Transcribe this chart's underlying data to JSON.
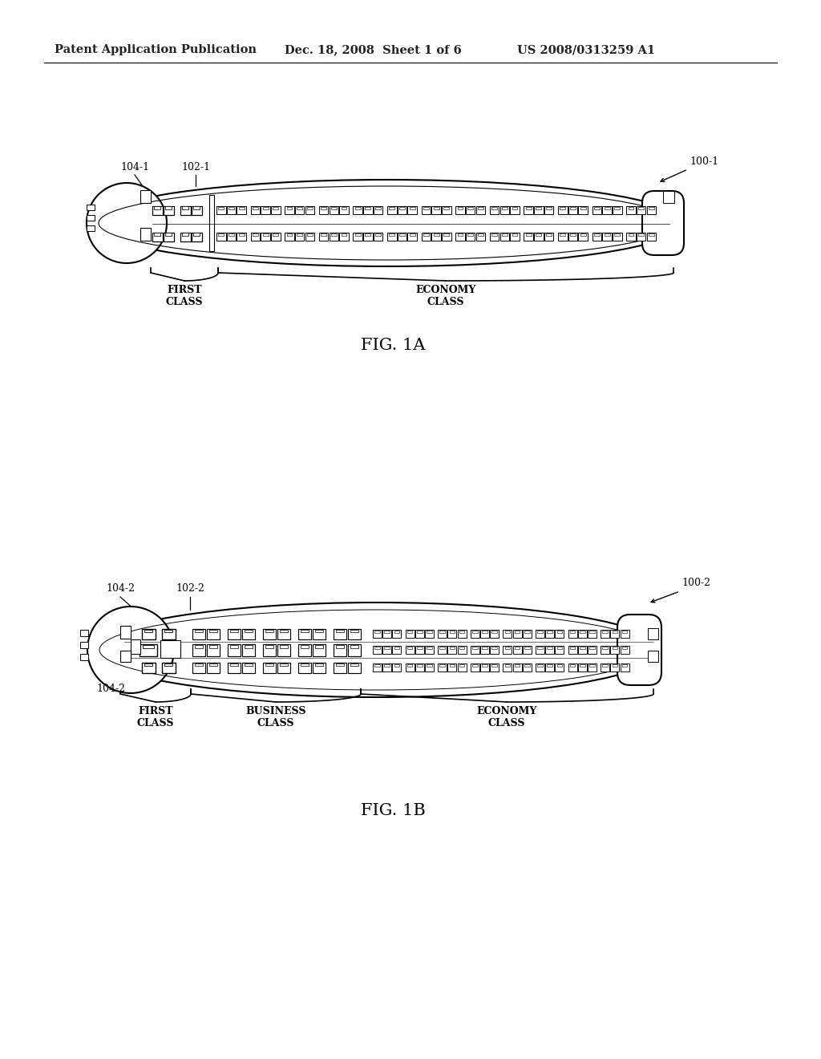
{
  "bg_color": "#ffffff",
  "header_left": "Patent Application Publication",
  "header_mid": "Dec. 18, 2008  Sheet 1 of 6",
  "header_right": "US 2008/0313259 A1",
  "fig1a_label": "FIG. 1A",
  "fig1b_label": "FIG. 1B",
  "fig1a_ref_main": "100-1",
  "fig1b_ref_main": "100-2",
  "fig1a_ref1": "104-1",
  "fig1a_ref2": "102-1",
  "fig1b_ref1": "104-2",
  "fig1b_ref2": "102-2",
  "fig1b_ref3": "104-2"
}
